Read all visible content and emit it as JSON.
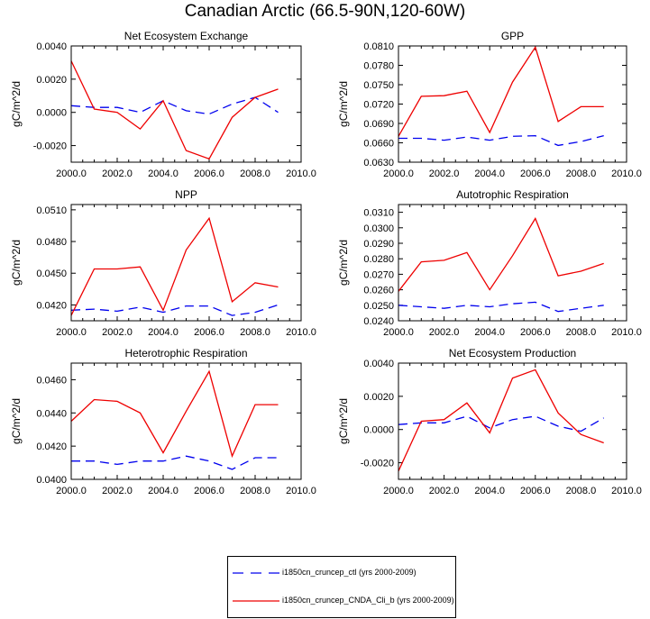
{
  "title": "Canadian Arctic (66.5-90N,120-60W)",
  "colors": {
    "ctl": "#0000ee",
    "exp": "#ee0000"
  },
  "legend": {
    "ctl_label": "i1850cn_cruncep_ctl (yrs 2000-2009)",
    "exp_label": "i1850cn_cruncep_CNDA_Cli_b (yrs 2000-2009)"
  },
  "chart_data": [
    {
      "type": "line",
      "title": "Net Ecosystem Exchange",
      "ylabel": "gC/m^2/d",
      "xlim": [
        2000,
        2010
      ],
      "ylim": [
        -0.003,
        0.004
      ],
      "xticks": [
        "2000.0",
        "2002.0",
        "2004.0",
        "2006.0",
        "2008.0",
        "2010.0"
      ],
      "yticks": [
        -0.002,
        0.0,
        0.002,
        0.004
      ],
      "yticklabels": [
        "-0.0020",
        "0.0000",
        "0.0020",
        "0.0040"
      ],
      "x": [
        2000,
        2001,
        2002,
        2003,
        2004,
        2005,
        2006,
        2007,
        2008,
        2009
      ],
      "series": [
        {
          "name": "i1850cn_cruncep_ctl (yrs 2000-2009)",
          "style": "dashed",
          "values": [
            0.0004,
            0.0003,
            0.0003,
            0.0,
            0.0007,
            0.0001,
            -0.0001,
            0.0005,
            0.0009,
            0.0
          ]
        },
        {
          "name": "i1850cn_cruncep_CNDA_Cli_b (yrs 2000-2009)",
          "style": "solid",
          "values": [
            0.0031,
            0.0002,
            0.0,
            -0.001,
            0.0007,
            -0.0023,
            -0.0028,
            -0.0003,
            0.0009,
            0.0014
          ]
        }
      ]
    },
    {
      "type": "line",
      "title": "GPP",
      "ylabel": "gC/m^2/d",
      "xlim": [
        2000,
        2010
      ],
      "ylim": [
        0.063,
        0.081
      ],
      "xticks": [
        "2000.0",
        "2002.0",
        "2004.0",
        "2006.0",
        "2008.0",
        "2010.0"
      ],
      "yticks": [
        0.063,
        0.066,
        0.069,
        0.072,
        0.075,
        0.078,
        0.081
      ],
      "yticklabels": [
        "0.0630",
        "0.0660",
        "0.0690",
        "0.0720",
        "0.0750",
        "0.0780",
        "0.0810"
      ],
      "x": [
        2000,
        2001,
        2002,
        2003,
        2004,
        2005,
        2006,
        2007,
        2008,
        2009
      ],
      "series": [
        {
          "name": "i1850cn_cruncep_ctl (yrs 2000-2009)",
          "style": "dashed",
          "values": [
            0.0667,
            0.0667,
            0.0664,
            0.0669,
            0.0664,
            0.067,
            0.0671,
            0.0656,
            0.0662,
            0.0671
          ]
        },
        {
          "name": "i1850cn_cruncep_CNDA_Cli_b (yrs 2000-2009)",
          "style": "solid",
          "values": [
            0.067,
            0.0732,
            0.0733,
            0.074,
            0.0676,
            0.0754,
            0.0808,
            0.0693,
            0.0716,
            0.0716
          ]
        }
      ]
    },
    {
      "type": "line",
      "title": "NPP",
      "ylabel": "gC/m^2/d",
      "xlim": [
        2000,
        2010
      ],
      "ylim": [
        0.0405,
        0.0515
      ],
      "xticks": [
        "2000.0",
        "2002.0",
        "2004.0",
        "2006.0",
        "2008.0",
        "2010.0"
      ],
      "yticks": [
        0.042,
        0.045,
        0.048,
        0.051
      ],
      "yticklabels": [
        "0.0420",
        "0.0450",
        "0.0480",
        "0.0510"
      ],
      "x": [
        2000,
        2001,
        2002,
        2003,
        2004,
        2005,
        2006,
        2007,
        2008,
        2009
      ],
      "series": [
        {
          "name": "i1850cn_cruncep_ctl (yrs 2000-2009)",
          "style": "dashed",
          "values": [
            0.0415,
            0.0416,
            0.0414,
            0.0418,
            0.0413,
            0.0419,
            0.0419,
            0.041,
            0.0413,
            0.042
          ]
        },
        {
          "name": "i1850cn_cruncep_CNDA_Cli_b (yrs 2000-2009)",
          "style": "solid",
          "values": [
            0.041,
            0.0454,
            0.0454,
            0.0456,
            0.0415,
            0.0472,
            0.0502,
            0.0423,
            0.0441,
            0.0437
          ]
        }
      ]
    },
    {
      "type": "line",
      "title": "Autotrophic Respiration",
      "ylabel": "gC/m^2/d",
      "xlim": [
        2000,
        2010
      ],
      "ylim": [
        0.024,
        0.0315
      ],
      "xticks": [
        "2000.0",
        "2002.0",
        "2004.0",
        "2006.0",
        "2008.0",
        "2010.0"
      ],
      "yticks": [
        0.024,
        0.025,
        0.026,
        0.027,
        0.028,
        0.029,
        0.03,
        0.031
      ],
      "yticklabels": [
        "0.0240",
        "0.0250",
        "0.0260",
        "0.0270",
        "0.0280",
        "0.0290",
        "0.0300",
        "0.0310"
      ],
      "x": [
        2000,
        2001,
        2002,
        2003,
        2004,
        2005,
        2006,
        2007,
        2008,
        2009
      ],
      "series": [
        {
          "name": "i1850cn_cruncep_ctl (yrs 2000-2009)",
          "style": "dashed",
          "values": [
            0.025,
            0.0249,
            0.0248,
            0.025,
            0.0249,
            0.0251,
            0.0252,
            0.0246,
            0.0248,
            0.025
          ]
        },
        {
          "name": "i1850cn_cruncep_CNDA_Cli_b (yrs 2000-2009)",
          "style": "solid",
          "values": [
            0.0259,
            0.0278,
            0.0279,
            0.0284,
            0.026,
            0.0282,
            0.0306,
            0.0269,
            0.0272,
            0.0277
          ]
        }
      ]
    },
    {
      "type": "line",
      "title": "Heterotrophic Respiration",
      "ylabel": "gC/m^2/d",
      "xlim": [
        2000,
        2010
      ],
      "ylim": [
        0.04,
        0.047
      ],
      "xticks": [
        "2000.0",
        "2002.0",
        "2004.0",
        "2006.0",
        "2008.0",
        "2010.0"
      ],
      "yticks": [
        0.04,
        0.042,
        0.044,
        0.046
      ],
      "yticklabels": [
        "0.0400",
        "0.0420",
        "0.0440",
        "0.0460"
      ],
      "x": [
        2000,
        2001,
        2002,
        2003,
        2004,
        2005,
        2006,
        2007,
        2008,
        2009
      ],
      "series": [
        {
          "name": "i1850cn_cruncep_ctl (yrs 2000-2009)",
          "style": "dashed",
          "values": [
            0.0411,
            0.0411,
            0.0409,
            0.0411,
            0.0411,
            0.0414,
            0.0411,
            0.0406,
            0.0413,
            0.0413
          ]
        },
        {
          "name": "i1850cn_cruncep_CNDA_Cli_b (yrs 2000-2009)",
          "style": "solid",
          "values": [
            0.0435,
            0.0448,
            0.0447,
            0.044,
            0.0416,
            0.0441,
            0.0465,
            0.0414,
            0.0445,
            0.0445
          ]
        }
      ]
    },
    {
      "type": "line",
      "title": "Net Ecosystem Production",
      "ylabel": "gC/m^2/d",
      "xlim": [
        2000,
        2010
      ],
      "ylim": [
        -0.003,
        0.004
      ],
      "xticks": [
        "2000.0",
        "2002.0",
        "2004.0",
        "2006.0",
        "2008.0",
        "2010.0"
      ],
      "yticks": [
        -0.002,
        0.0,
        0.002,
        0.004
      ],
      "yticklabels": [
        "-0.0020",
        "0.0000",
        "0.0020",
        "0.0040"
      ],
      "x": [
        2000,
        2001,
        2002,
        2003,
        2004,
        2005,
        2006,
        2007,
        2008,
        2009
      ],
      "series": [
        {
          "name": "i1850cn_cruncep_ctl (yrs 2000-2009)",
          "style": "dashed",
          "values": [
            0.0003,
            0.0004,
            0.0004,
            0.0008,
            0.0001,
            0.0006,
            0.0008,
            0.0002,
            -0.0001,
            0.0007
          ]
        },
        {
          "name": "i1850cn_cruncep_CNDA_Cli_b (yrs 2000-2009)",
          "style": "solid",
          "values": [
            -0.0025,
            0.0005,
            0.0006,
            0.0016,
            -0.0002,
            0.0031,
            0.0036,
            0.001,
            -0.0003,
            -0.0008
          ]
        }
      ]
    }
  ]
}
